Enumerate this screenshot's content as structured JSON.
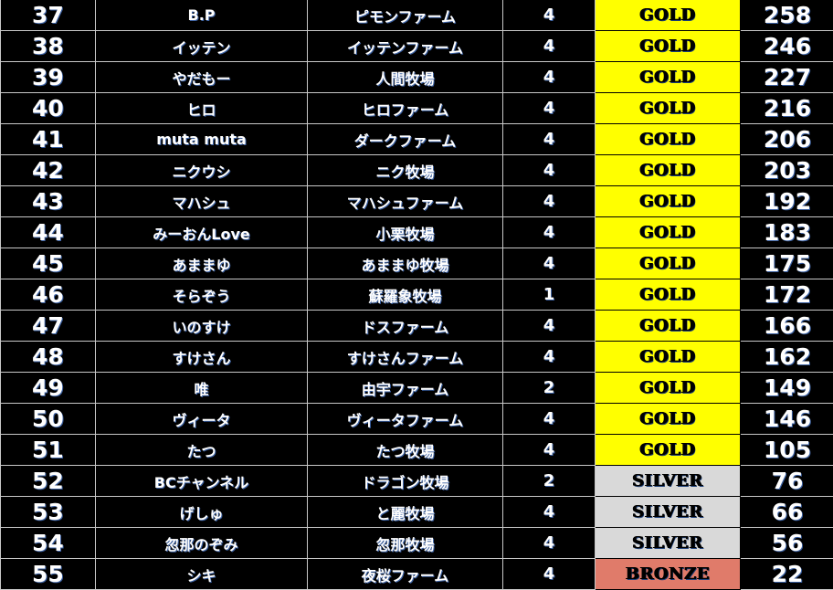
{
  "colors": {
    "gold": "#ffff00",
    "silver": "#d9d9d9",
    "bronze": "#e07b6a",
    "background": "#000000"
  },
  "rows": [
    {
      "rank": "37",
      "name": "B.P",
      "farm": "ピモンファーム",
      "count": "4",
      "tier": "GOLD",
      "score": "258"
    },
    {
      "rank": "38",
      "name": "イッテン",
      "farm": "イッテンファーム",
      "count": "4",
      "tier": "GOLD",
      "score": "246"
    },
    {
      "rank": "39",
      "name": "やだもー",
      "farm": "人間牧場",
      "count": "4",
      "tier": "GOLD",
      "score": "227"
    },
    {
      "rank": "40",
      "name": "ヒロ",
      "farm": "ヒロファーム",
      "count": "4",
      "tier": "GOLD",
      "score": "216"
    },
    {
      "rank": "41",
      "name": "muta muta",
      "farm": "ダークファーム",
      "count": "4",
      "tier": "GOLD",
      "score": "206"
    },
    {
      "rank": "42",
      "name": "ニクウシ",
      "farm": "ニク牧場",
      "count": "4",
      "tier": "GOLD",
      "score": "203"
    },
    {
      "rank": "43",
      "name": "マハシュ",
      "farm": "マハシュファーム",
      "count": "4",
      "tier": "GOLD",
      "score": "192"
    },
    {
      "rank": "44",
      "name": "みーおんLove",
      "farm": "小栗牧場",
      "count": "4",
      "tier": "GOLD",
      "score": "183"
    },
    {
      "rank": "45",
      "name": "あままゆ",
      "farm": "あままゆ牧場",
      "count": "4",
      "tier": "GOLD",
      "score": "175"
    },
    {
      "rank": "46",
      "name": "そらぞう",
      "farm": "蘇羅象牧場",
      "count": "1",
      "tier": "GOLD",
      "score": "172"
    },
    {
      "rank": "47",
      "name": "いのすけ",
      "farm": "ドスファーム",
      "count": "4",
      "tier": "GOLD",
      "score": "166"
    },
    {
      "rank": "48",
      "name": "すけさん",
      "farm": "すけさんファーム",
      "count": "4",
      "tier": "GOLD",
      "score": "162"
    },
    {
      "rank": "49",
      "name": "唯",
      "farm": "由宇ファーム",
      "count": "2",
      "tier": "GOLD",
      "score": "149"
    },
    {
      "rank": "50",
      "name": "ヴィータ",
      "farm": "ヴィータファーム",
      "count": "4",
      "tier": "GOLD",
      "score": "146"
    },
    {
      "rank": "51",
      "name": "たつ",
      "farm": "たつ牧場",
      "count": "4",
      "tier": "GOLD",
      "score": "105"
    },
    {
      "rank": "52",
      "name": "BCチャンネル",
      "farm": "ドラゴン牧場",
      "count": "2",
      "tier": "SILVER",
      "score": "76"
    },
    {
      "rank": "53",
      "name": "げしゅ",
      "farm": "と麗牧場",
      "count": "4",
      "tier": "SILVER",
      "score": "66"
    },
    {
      "rank": "54",
      "name": "忽那のぞみ",
      "farm": "忽那牧場",
      "count": "4",
      "tier": "SILVER",
      "score": "56"
    },
    {
      "rank": "55",
      "name": "シキ",
      "farm": "夜桜ファーム",
      "count": "4",
      "tier": "BRONZE",
      "score": "22"
    }
  ]
}
